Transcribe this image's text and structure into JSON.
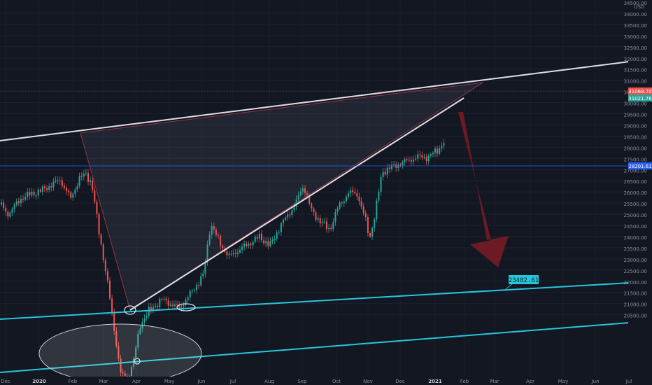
{
  "chart_data": {
    "type": "candlestick",
    "currency": "USD",
    "x_tick_labels": [
      "Dec",
      "2020",
      "Feb",
      "Mar",
      "Apr",
      "May",
      "Jun",
      "Jul",
      "Aug",
      "Sep",
      "Oct",
      "Nov",
      "Dec",
      "2021",
      "Feb",
      "Mar",
      "Apr",
      "May",
      "Jun",
      "Jul"
    ],
    "y_tick_labels": [
      "20500.00",
      "21000.00",
      "21500.00",
      "22000.00",
      "22500.00",
      "23000.00",
      "23500.00",
      "24000.00",
      "24500.00",
      "25000.00",
      "25500.00",
      "26000.00",
      "26500.00",
      "27000.00",
      "27500.00",
      "28000.00",
      "28500.00",
      "29000.00",
      "29500.00",
      "30000.00",
      "30500.00",
      "31000.00",
      "31500.00",
      "32000.00",
      "32500.00",
      "33000.00",
      "33500.00",
      "34000.00",
      "34500.00"
    ],
    "price_labels": [
      {
        "value": "31068.70",
        "color": "#ef5350"
      },
      {
        "value": "31021.76",
        "color": "#26a69a"
      },
      {
        "value": "28201.61",
        "color": "#2962ff"
      }
    ],
    "callout": {
      "text": "23482.61",
      "color": "#26c6da"
    },
    "colors": {
      "up": "#26a69a",
      "down": "#ef5350",
      "background": "#131722",
      "trendline": "#e1dfe6",
      "channel": "#26c6da",
      "arrow": "#8b1c24"
    },
    "annotations": [
      "rising wedge",
      "downward arrow",
      "ascending channel",
      "price marker"
    ]
  }
}
